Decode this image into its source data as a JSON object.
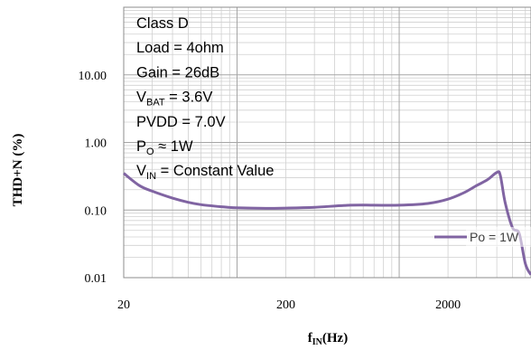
{
  "chart_data": {
    "type": "line",
    "ylabel": "THD+N (%)",
    "xlabel_main": "f",
    "xlabel_sub": "IN",
    "xlabel_unit": "(Hz)",
    "xscale": "log",
    "yscale": "log",
    "xlim": [
      20,
      6500
    ],
    "ylim": [
      0.01,
      100
    ],
    "grid": true,
    "x_ticks": [
      {
        "value": 20,
        "label": "20"
      },
      {
        "value": 200,
        "label": "200"
      },
      {
        "value": 2000,
        "label": "2000"
      }
    ],
    "y_ticks": [
      {
        "value": 10,
        "label": "10.00"
      },
      {
        "value": 1,
        "label": "1.00"
      },
      {
        "value": 0.1,
        "label": "0.10"
      },
      {
        "value": 0.01,
        "label": "0.01"
      }
    ],
    "legend": {
      "position": "right",
      "entries": [
        "Po = 1W"
      ]
    },
    "series": [
      {
        "name": "Po = 1W",
        "color": "#8064a2",
        "x": [
          20,
          25,
          30,
          40,
          50,
          60,
          80,
          100,
          150,
          200,
          300,
          500,
          700,
          1000,
          1500,
          2000,
          2500,
          3000,
          3500,
          4000,
          4200,
          4500,
          5000,
          5500,
          6000,
          6500
        ],
        "y": [
          0.35,
          0.23,
          0.19,
          0.15,
          0.13,
          0.12,
          0.112,
          0.108,
          0.106,
          0.107,
          0.11,
          0.118,
          0.118,
          0.118,
          0.125,
          0.145,
          0.18,
          0.23,
          0.28,
          0.36,
          0.33,
          0.13,
          0.055,
          0.045,
          0.016,
          0.011
        ]
      }
    ],
    "annotation_lines": [
      {
        "main": "Class D"
      },
      {
        "main": "Load = 4ohm"
      },
      {
        "main": "Gain = 26dB"
      },
      {
        "main": "V",
        "sub": "BAT",
        "rest": " = 3.6V"
      },
      {
        "main": "PVDD = 7.0V"
      },
      {
        "main": "P",
        "sub": "O",
        "rest": " ≈ 1W"
      },
      {
        "main": "V",
        "sub": "IN",
        "rest": " = Constant Value"
      }
    ]
  }
}
